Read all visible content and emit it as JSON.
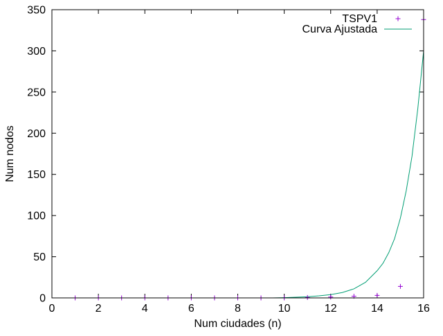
{
  "chart_data": {
    "type": "scatter",
    "title": "",
    "xlabel": "Num ciudades (n)",
    "ylabel": "Num nodos",
    "xlim": [
      0,
      16
    ],
    "ylim": [
      0,
      350
    ],
    "xticks": [
      0,
      2,
      4,
      6,
      8,
      10,
      12,
      14,
      16
    ],
    "yticks": [
      0,
      50,
      100,
      150,
      200,
      250,
      300,
      350
    ],
    "grid": false,
    "legend_position": "top-right",
    "series": [
      {
        "name": "TSPV1",
        "kind": "points",
        "marker": "plus",
        "color": "#9400d3",
        "x": [
          1,
          2,
          3,
          4,
          5,
          6,
          7,
          8,
          9,
          10,
          11,
          12,
          13,
          14,
          15,
          16
        ],
        "y": [
          0,
          0,
          0,
          0,
          0,
          0,
          0,
          0,
          0,
          0,
          0.5,
          1,
          2,
          3,
          14,
          338
        ]
      },
      {
        "name": "Curva Ajustada",
        "kind": "line",
        "color": "#009e73",
        "x": [
          9.5,
          10,
          10.5,
          11,
          11.5,
          12,
          12.5,
          13,
          13.5,
          14,
          14.25,
          14.5,
          14.75,
          15,
          15.25,
          15.5,
          15.75,
          16
        ],
        "y": [
          0,
          0.3,
          0.8,
          1.4,
          2.5,
          4,
          6.5,
          11,
          19,
          33,
          42,
          55,
          72,
          97,
          130,
          172,
          230,
          300
        ]
      }
    ]
  }
}
